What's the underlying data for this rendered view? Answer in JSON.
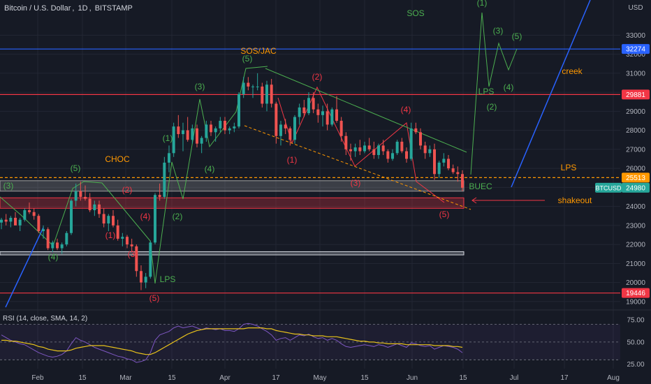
{
  "header": {
    "symbol": "Bitcoin / U.S. Dollar",
    "interval": "1D",
    "exchange": "BITSTAMP",
    "currency": "USD"
  },
  "rsi_label": "RSI (14, close, SMA, 14, 2)",
  "colors": {
    "background": "#161a25",
    "grid": "#232734",
    "up": "#26a69a",
    "down": "#ef5350",
    "wave_green": "#4caf50",
    "wave_red": "#f23645",
    "blue_line": "#2962ff",
    "orange": "#ff9800",
    "rsi_line": "#7e57c2",
    "rsi_ma": "#e8c21b"
  },
  "chart_data": [
    {
      "type": "candlestick",
      "title": "Bitcoin / U.S. Dollar, 1D, BITSTAMP",
      "ylabel": "USD",
      "ylim": [
        18700,
        34850
      ],
      "x_ticks": [
        "Feb",
        "15",
        "Mar",
        "15",
        "Apr",
        "17",
        "May",
        "15",
        "Jun",
        "15",
        "Jul",
        "17",
        "Aug"
      ],
      "y_ticks": [
        19000,
        20000,
        21000,
        22000,
        23000,
        24000,
        25000,
        26000,
        27000,
        28000,
        29000,
        30000,
        31000,
        32000,
        33000
      ],
      "price_tags": [
        {
          "value": 32274,
          "label": "32274",
          "color": "#2962ff"
        },
        {
          "value": 29881,
          "label": "29881",
          "color": "#f23645"
        },
        {
          "value": 25513,
          "label": "25513",
          "color": "#ff9800"
        },
        {
          "value": 24980,
          "label": "24980",
          "color": "#26a69a",
          "symbol": "BTCUSD"
        },
        {
          "value": 19446,
          "label": "19446",
          "color": "#f23645"
        }
      ],
      "levels": [
        {
          "value": 32274,
          "color": "#2962ff"
        },
        {
          "value": 29881,
          "color": "#f23645"
        },
        {
          "value": 25513,
          "color": "#ff9800",
          "dashed": true
        },
        {
          "value": 19446,
          "color": "#f23645"
        }
      ],
      "zones": [
        {
          "from": 24800,
          "to": 25350,
          "color": "#9e9e9e"
        },
        {
          "from": 23900,
          "to": 24450,
          "color": "#f23645"
        },
        {
          "from": 21450,
          "to": 21620,
          "color": "#d1d4dc"
        }
      ],
      "candles": [
        [
          23150,
          23400,
          22800,
          23300
        ],
        [
          23300,
          23600,
          23000,
          23200
        ],
        [
          23200,
          23500,
          22900,
          23400
        ],
        [
          23400,
          23700,
          23100,
          23000
        ],
        [
          23000,
          23400,
          22700,
          23300
        ],
        [
          23300,
          23900,
          23200,
          23800
        ],
        [
          23800,
          24200,
          23600,
          23700
        ],
        [
          23700,
          23900,
          23300,
          23500
        ],
        [
          23500,
          23600,
          22600,
          22700
        ],
        [
          22700,
          23000,
          22300,
          22800
        ],
        [
          22800,
          22900,
          21700,
          21800
        ],
        [
          21800,
          22200,
          21600,
          22100
        ],
        [
          22100,
          22300,
          21700,
          21800
        ],
        [
          21800,
          22100,
          21500,
          22000
        ],
        [
          22000,
          22700,
          21900,
          22600
        ],
        [
          22600,
          24400,
          22500,
          24300
        ],
        [
          24300,
          25200,
          24000,
          24800
        ],
        [
          24800,
          25300,
          24300,
          24500
        ],
        [
          24500,
          25100,
          24300,
          24400
        ],
        [
          24400,
          24700,
          23700,
          23800
        ],
        [
          23800,
          24300,
          23500,
          24100
        ],
        [
          24100,
          24300,
          23400,
          23600
        ],
        [
          23600,
          23900,
          22900,
          23100
        ],
        [
          23100,
          23600,
          22700,
          23500
        ],
        [
          23500,
          23800,
          22900,
          23000
        ],
        [
          23000,
          23300,
          22200,
          22300
        ],
        [
          22300,
          22600,
          21900,
          22400
        ],
        [
          22400,
          22500,
          21800,
          22000
        ],
        [
          22000,
          22300,
          21600,
          21900
        ],
        [
          21900,
          22000,
          20300,
          20600
        ],
        [
          20600,
          20900,
          19600,
          20000
        ],
        [
          20000,
          20500,
          19700,
          20300
        ],
        [
          20300,
          22200,
          20200,
          22100
        ],
        [
          22100,
          24700,
          22000,
          24600
        ],
        [
          24600,
          25200,
          24300,
          24500
        ],
        [
          24500,
          26600,
          24400,
          26300
        ],
        [
          26300,
          27200,
          25800,
          26800
        ],
        [
          26800,
          28400,
          26600,
          28200
        ],
        [
          28200,
          28800,
          27600,
          27800
        ],
        [
          27800,
          28400,
          26900,
          28000
        ],
        [
          28000,
          28700,
          27400,
          27500
        ],
        [
          27500,
          28300,
          27300,
          28100
        ],
        [
          28100,
          28300,
          27100,
          27300
        ],
        [
          27300,
          27700,
          26800,
          27600
        ],
        [
          27600,
          28500,
          27400,
          28300
        ],
        [
          28300,
          28500,
          27700,
          27900
        ],
        [
          27900,
          28200,
          27400,
          28100
        ],
        [
          28100,
          28700,
          27900,
          28500
        ],
        [
          28500,
          28700,
          27800,
          28000
        ],
        [
          28000,
          28200,
          27800,
          28100
        ],
        [
          28100,
          28400,
          27900,
          28200
        ],
        [
          28200,
          30000,
          28100,
          29900
        ],
        [
          29900,
          30800,
          29700,
          30500
        ],
        [
          30500,
          30800,
          30100,
          30300
        ],
        [
          30300,
          30400,
          29700,
          30300
        ],
        [
          30300,
          31000,
          30100,
          30300
        ],
        [
          30300,
          30500,
          29200,
          29400
        ],
        [
          29400,
          30600,
          29000,
          30400
        ],
        [
          30400,
          30700,
          29200,
          29400
        ],
        [
          29400,
          29500,
          27300,
          27700
        ],
        [
          27700,
          28500,
          27200,
          28300
        ],
        [
          28300,
          28600,
          27800,
          28100
        ],
        [
          28100,
          28200,
          27200,
          27500
        ],
        [
          27500,
          28800,
          27300,
          28700
        ],
        [
          28700,
          29400,
          28300,
          29200
        ],
        [
          29200,
          29600,
          28700,
          28900
        ],
        [
          28900,
          30000,
          28800,
          29700
        ],
        [
          29700,
          30000,
          28900,
          29100
        ],
        [
          29100,
          29400,
          28400,
          28800
        ],
        [
          28800,
          29300,
          28200,
          29000
        ],
        [
          29000,
          29400,
          28000,
          28300
        ],
        [
          28300,
          29200,
          28200,
          29100
        ],
        [
          29100,
          29800,
          28400,
          28500
        ],
        [
          28500,
          28700,
          27400,
          27700
        ],
        [
          27700,
          27900,
          26700,
          27000
        ],
        [
          27000,
          27300,
          26400,
          26900
        ],
        [
          26900,
          27300,
          26600,
          27100
        ],
        [
          27100,
          27500,
          26700,
          26900
        ],
        [
          26900,
          27400,
          26800,
          27200
        ],
        [
          27200,
          27600,
          26900,
          27000
        ],
        [
          27000,
          27400,
          26500,
          26700
        ],
        [
          26700,
          27300,
          26500,
          27200
        ],
        [
          27200,
          27500,
          26700,
          26900
        ],
        [
          26900,
          27000,
          26300,
          26500
        ],
        [
          26500,
          27000,
          26400,
          26800
        ],
        [
          26800,
          27500,
          26700,
          27400
        ],
        [
          27400,
          27600,
          26800,
          26900
        ],
        [
          26900,
          27100,
          26300,
          26500
        ],
        [
          26500,
          28400,
          26400,
          28100
        ],
        [
          28100,
          28400,
          27800,
          27900
        ],
        [
          27900,
          28100,
          27000,
          27200
        ],
        [
          27200,
          27400,
          26500,
          26800
        ],
        [
          26800,
          27200,
          26600,
          27000
        ],
        [
          27000,
          27300,
          25400,
          25700
        ],
        [
          25700,
          26400,
          25500,
          26300
        ],
        [
          26300,
          26800,
          26100,
          26500
        ],
        [
          26500,
          26700,
          25900,
          26000
        ],
        [
          26000,
          26200,
          25700,
          25800
        ],
        [
          25800,
          26100,
          25300,
          25700
        ],
        [
          25700,
          25900,
          24800,
          24980
        ]
      ],
      "annotations": [
        {
          "text": "(1)",
          "x": 690,
          "y": 4,
          "color": "#4caf50"
        },
        {
          "text": "SOS",
          "x": 595,
          "y": 19,
          "color": "#4caf50"
        },
        {
          "text": "(3)",
          "x": 713,
          "y": 44,
          "color": "#4caf50"
        },
        {
          "text": "(5)",
          "x": 740,
          "y": 52,
          "color": "#4caf50"
        },
        {
          "text": "SOS/JAC",
          "x": 370,
          "y": 73,
          "color": "#ff9800"
        },
        {
          "text": "(5)",
          "x": 354,
          "y": 84,
          "color": "#4caf50"
        },
        {
          "text": "creek",
          "x": 819,
          "y": 102,
          "color": "#ff9800"
        },
        {
          "text": "(2)",
          "x": 454,
          "y": 110,
          "color": "#f23645"
        },
        {
          "text": "(3)",
          "x": 286,
          "y": 124,
          "color": "#4caf50"
        },
        {
          "text": "(4)",
          "x": 728,
          "y": 125,
          "color": "#4caf50"
        },
        {
          "text": "LPS",
          "x": 696,
          "y": 131,
          "color": "#4caf50"
        },
        {
          "text": "(2)",
          "x": 704,
          "y": 153,
          "color": "#4caf50"
        },
        {
          "text": "(4)",
          "x": 581,
          "y": 157,
          "color": "#f23645"
        },
        {
          "text": "(1)",
          "x": 240,
          "y": 198,
          "color": "#4caf50"
        },
        {
          "text": "CHOC",
          "x": 168,
          "y": 228,
          "color": "#ff9800"
        },
        {
          "text": "(1)",
          "x": 418,
          "y": 229,
          "color": "#f23645"
        },
        {
          "text": "(5)",
          "x": 108,
          "y": 241,
          "color": "#4caf50"
        },
        {
          "text": "(4)",
          "x": 300,
          "y": 242,
          "color": "#4caf50"
        },
        {
          "text": "LPS",
          "x": 814,
          "y": 240,
          "color": "#ff9800"
        },
        {
          "text": "(3)",
          "x": 509,
          "y": 262,
          "color": "#f23645"
        },
        {
          "text": "(3)",
          "x": 12,
          "y": 266,
          "color": "#4caf50"
        },
        {
          "text": "BUEC",
          "x": 688,
          "y": 267,
          "color": "#4caf50"
        },
        {
          "text": "(2)",
          "x": 182,
          "y": 272,
          "color": "#f23645"
        },
        {
          "text": "shakeout",
          "x": 823,
          "y": 287,
          "color": "#ff9800"
        },
        {
          "text": "(5)",
          "x": 636,
          "y": 307,
          "color": "#f23645"
        },
        {
          "text": "(2)",
          "x": 254,
          "y": 310,
          "color": "#4caf50"
        },
        {
          "text": "(4)",
          "x": 208,
          "y": 310,
          "color": "#f23645"
        },
        {
          "text": "(1)",
          "x": 158,
          "y": 337,
          "color": "#f23645"
        },
        {
          "text": "(3)",
          "x": 190,
          "y": 364,
          "color": "#f23645"
        },
        {
          "text": "(4)",
          "x": 76,
          "y": 368,
          "color": "#4caf50"
        },
        {
          "text": "LPS",
          "x": 240,
          "y": 400,
          "color": "#4caf50"
        },
        {
          "text": "(5)",
          "x": 221,
          "y": 427,
          "color": "#f23645"
        }
      ]
    },
    {
      "type": "line",
      "title": "RSI (14, close, SMA, 14, 2)",
      "ylim": [
        20,
        83
      ],
      "y_ticks": [
        25,
        50,
        75
      ],
      "y_tick_labels": [
        "25.00",
        "50.00",
        "75.00"
      ],
      "series": [
        {
          "values": [
            58,
            55,
            52,
            50,
            48,
            47,
            44,
            41,
            38,
            36,
            34,
            33,
            34,
            36,
            40,
            48,
            55,
            52,
            50,
            47,
            44,
            42,
            40,
            38,
            36,
            34,
            33,
            31,
            30,
            27,
            28,
            30,
            38,
            52,
            58,
            60,
            62,
            66,
            68,
            66,
            67,
            68,
            66,
            64,
            66,
            65,
            64,
            65,
            63,
            63,
            62,
            65,
            70,
            71,
            70,
            68,
            65,
            62,
            58,
            52,
            54,
            55,
            52,
            55,
            58,
            57,
            59,
            56,
            54,
            55,
            52,
            54,
            52,
            48,
            45,
            44,
            45,
            46,
            47,
            46,
            45,
            47,
            46,
            44,
            46,
            48,
            46,
            44,
            49,
            48,
            46,
            45,
            46,
            42,
            44,
            46,
            45,
            44,
            42,
            38
          ]
        },
        {
          "values": [
            52,
            52,
            51,
            51,
            50,
            49,
            48,
            47,
            45,
            44,
            42,
            41,
            40,
            40,
            40,
            41,
            43,
            44,
            45,
            46,
            46,
            46,
            46,
            45,
            44,
            43,
            42,
            41,
            40,
            38,
            37,
            36,
            36,
            38,
            41,
            44,
            47,
            50,
            53,
            56,
            59,
            61,
            63,
            64,
            65,
            65,
            65,
            65,
            65,
            65,
            65,
            65,
            65,
            66,
            66,
            66,
            66,
            65,
            65,
            63,
            62,
            61,
            60,
            59,
            59,
            58,
            58,
            57,
            57,
            57,
            56,
            56,
            56,
            55,
            54,
            53,
            52,
            51,
            51,
            50,
            50,
            49,
            49,
            48,
            48,
            48,
            48,
            47,
            47,
            47,
            47,
            47,
            47,
            46,
            46,
            46,
            46,
            45,
            45,
            44
          ]
        }
      ]
    }
  ]
}
